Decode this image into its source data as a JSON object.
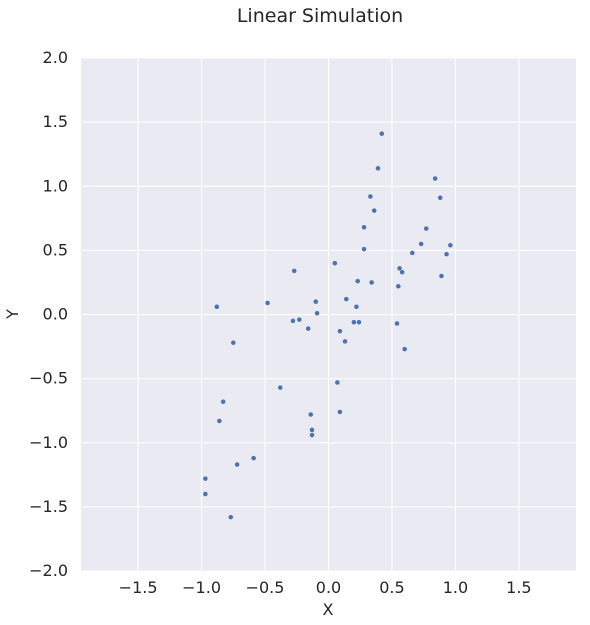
{
  "chart_data": {
    "type": "scatter",
    "title": "Linear Simulation",
    "xlabel": "X",
    "ylabel": "Y",
    "xlim": [
      -1.95,
      1.95
    ],
    "ylim": [
      -2.0,
      2.0
    ],
    "xticks": [
      -1.5,
      -1.0,
      -0.5,
      0.0,
      0.5,
      1.0,
      1.5
    ],
    "yticks": [
      -2.0,
      -1.5,
      -1.0,
      -0.5,
      0.0,
      0.5,
      1.0,
      1.5,
      2.0
    ],
    "xtick_labels": [
      "−1.5",
      "−1.0",
      "−0.5",
      "0.0",
      "0.5",
      "1.0",
      "1.5"
    ],
    "ytick_labels": [
      "−2.0",
      "−1.5",
      "−1.0",
      "−0.5",
      "0.0",
      "0.5",
      "1.0",
      "1.5",
      "2.0"
    ],
    "grid": true,
    "colors": {
      "background": "#eaeaf2",
      "grid": "#ffffff",
      "point": "#4c72b0",
      "text": "#262626"
    },
    "points": [
      {
        "x": 0.42,
        "y": 1.41
      },
      {
        "x": 0.39,
        "y": 1.14
      },
      {
        "x": 0.84,
        "y": 1.06
      },
      {
        "x": 0.33,
        "y": 0.92
      },
      {
        "x": 0.88,
        "y": 0.91
      },
      {
        "x": 0.36,
        "y": 0.81
      },
      {
        "x": 0.28,
        "y": 0.68
      },
      {
        "x": 0.77,
        "y": 0.67
      },
      {
        "x": 0.73,
        "y": 0.55
      },
      {
        "x": 0.96,
        "y": 0.54
      },
      {
        "x": 0.28,
        "y": 0.51
      },
      {
        "x": 0.66,
        "y": 0.48
      },
      {
        "x": 0.93,
        "y": 0.47
      },
      {
        "x": 0.05,
        "y": 0.4
      },
      {
        "x": 0.56,
        "y": 0.36
      },
      {
        "x": 0.58,
        "y": 0.33
      },
      {
        "x": -0.27,
        "y": 0.34
      },
      {
        "x": 0.89,
        "y": 0.3
      },
      {
        "x": 0.23,
        "y": 0.26
      },
      {
        "x": 0.34,
        "y": 0.25
      },
      {
        "x": 0.55,
        "y": 0.22
      },
      {
        "x": -0.48,
        "y": 0.09
      },
      {
        "x": -0.1,
        "y": 0.1
      },
      {
        "x": 0.14,
        "y": 0.12
      },
      {
        "x": -0.88,
        "y": 0.06
      },
      {
        "x": 0.22,
        "y": 0.06
      },
      {
        "x": -0.09,
        "y": 0.01
      },
      {
        "x": -0.28,
        "y": -0.05
      },
      {
        "x": -0.23,
        "y": -0.04
      },
      {
        "x": 0.2,
        "y": -0.06
      },
      {
        "x": 0.24,
        "y": -0.06
      },
      {
        "x": 0.54,
        "y": -0.07
      },
      {
        "x": -0.16,
        "y": -0.11
      },
      {
        "x": 0.09,
        "y": -0.13
      },
      {
        "x": 0.13,
        "y": -0.21
      },
      {
        "x": -0.75,
        "y": -0.22
      },
      {
        "x": 0.6,
        "y": -0.27
      },
      {
        "x": 0.07,
        "y": -0.53
      },
      {
        "x": -0.38,
        "y": -0.57
      },
      {
        "x": -0.83,
        "y": -0.68
      },
      {
        "x": -0.14,
        "y": -0.78
      },
      {
        "x": 0.09,
        "y": -0.76
      },
      {
        "x": -0.86,
        "y": -0.83
      },
      {
        "x": -0.13,
        "y": -0.9
      },
      {
        "x": -0.13,
        "y": -0.94
      },
      {
        "x": -0.59,
        "y": -1.12
      },
      {
        "x": -0.72,
        "y": -1.17
      },
      {
        "x": -0.97,
        "y": -1.28
      },
      {
        "x": -0.97,
        "y": -1.4
      },
      {
        "x": -0.77,
        "y": -1.58
      }
    ]
  }
}
